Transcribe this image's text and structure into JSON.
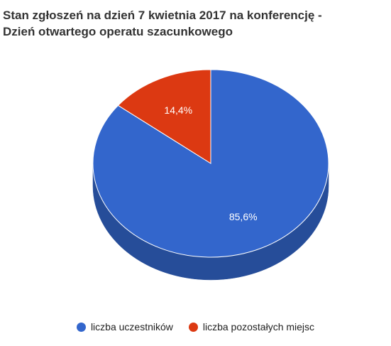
{
  "chart_data": {
    "type": "pie",
    "three_d": true,
    "title_lines": [
      "Stan zgłoszeń na dzień 7 kwietnia 2017 na konferencję -",
      "Dzień otwartego operatu szacunkowego"
    ],
    "slices": [
      {
        "name": "liczba uczestników",
        "value": 85.6,
        "label": "85,6%",
        "color": "#3366cc",
        "side_color": "#264d99"
      },
      {
        "name": "liczba pozostałych miejsc",
        "value": 14.4,
        "label": "14,4%",
        "color": "#dc3912",
        "side_color": "#a52b0e"
      }
    ],
    "legend_position": "bottom"
  }
}
